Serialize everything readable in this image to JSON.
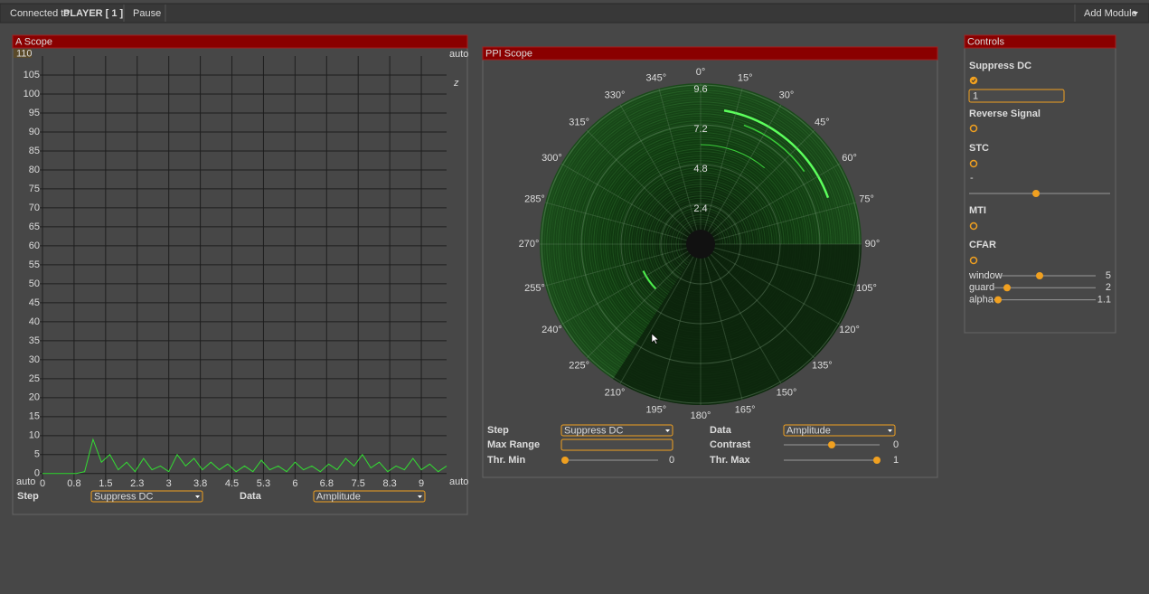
{
  "toolbar": {
    "connected_to": "Connected to",
    "player": "PLAYER [ 1 ]",
    "pause": "Pause",
    "add_module": "Add Module"
  },
  "a_scope": {
    "title": "A Scope",
    "max_box": "110",
    "auto_labels": [
      "auto",
      "auto",
      "auto"
    ],
    "marker": "z",
    "chart": {
      "type": "line",
      "x": [
        0,
        0.2,
        0.4,
        0.6,
        0.8,
        1.0,
        1.2,
        1.4,
        1.6,
        1.8,
        2.0,
        2.2,
        2.4,
        2.6,
        2.8,
        3.0,
        3.2,
        3.4,
        3.6,
        3.8,
        4.0,
        4.2,
        4.4,
        4.6,
        4.8,
        5.0,
        5.2,
        5.4,
        5.6,
        5.8,
        6.0,
        6.2,
        6.4,
        6.6,
        6.8,
        7.0,
        7.2,
        7.4,
        7.6,
        7.8,
        8.0,
        8.2,
        8.4,
        8.6,
        8.8,
        9.0,
        9.2,
        9.4,
        9.6
      ],
      "values": [
        0,
        0,
        0,
        0,
        0,
        0.5,
        9,
        3,
        5,
        1,
        3,
        0.5,
        4,
        1,
        2,
        0.5,
        5,
        2,
        4,
        1,
        3,
        1,
        2.5,
        0.5,
        2,
        0.5,
        3.5,
        1,
        2,
        0.5,
        3,
        1,
        2,
        0.5,
        2.5,
        1,
        4,
        2,
        5,
        1.5,
        3,
        0.5,
        2,
        1,
        4,
        1,
        2.5,
        0.5,
        2
      ],
      "color": "#33dd33",
      "xlim": [
        0,
        9.6
      ],
      "ylim": [
        -1,
        110
      ],
      "xticks": [
        0,
        {
          "value": 0.75,
          "label": "0.8"
        },
        1.5,
        {
          "value": 2.25,
          "label": "2.3"
        },
        3,
        {
          "value": 3.75,
          "label": "3.8"
        },
        4.5,
        {
          "value": 5.25,
          "label": "5.3"
        },
        6,
        {
          "value": 6.75,
          "label": "6.8"
        },
        7.5,
        {
          "value": 8.25,
          "label": "8.3"
        },
        9
      ],
      "yticks": [
        0,
        5,
        10,
        15,
        20,
        25,
        30,
        35,
        40,
        45,
        50,
        55,
        60,
        65,
        70,
        75,
        80,
        85,
        90,
        95,
        100,
        105
      ],
      "grid": true
    },
    "step_label": "Step",
    "step_value": "Suppress DC",
    "data_label": "Data",
    "data_value": "Amplitude"
  },
  "ppi_scope": {
    "title": "PPI Scope",
    "angle_labels": [
      "0°",
      "15°",
      "30°",
      "45°",
      "60°",
      "75°",
      "90°",
      "105°",
      "120°",
      "135°",
      "150°",
      "165°",
      "180°",
      "195°",
      "210°",
      "225°",
      "240°",
      "255°",
      "270°",
      "285°",
      "300°",
      "315°",
      "330°",
      "345°"
    ],
    "range_labels": [
      "2.4",
      "4.8",
      "7.2",
      "9.6"
    ],
    "step_label": "Step",
    "step_value": "Suppress DC",
    "data_label": "Data",
    "data_value": "Amplitude",
    "max_range_label": "Max Range",
    "contrast_label": "Contrast",
    "contrast_value": "0",
    "thr_min_label": "Thr. Min",
    "thr_min_value": "0",
    "thr_max_label": "Thr. Max",
    "thr_max_value": "1"
  },
  "controls": {
    "title": "Controls",
    "suppress_dc": "Suppress DC",
    "suppress_dc_input": "1",
    "reverse_signal": "Reverse Signal",
    "stc": "STC",
    "stc_value": "-",
    "mti": "MTI",
    "cfar": "CFAR",
    "sliders": [
      {
        "label": "window",
        "value": "5"
      },
      {
        "label": "guard",
        "value": "2"
      },
      {
        "label": "alpha",
        "value": "1.1"
      }
    ]
  }
}
